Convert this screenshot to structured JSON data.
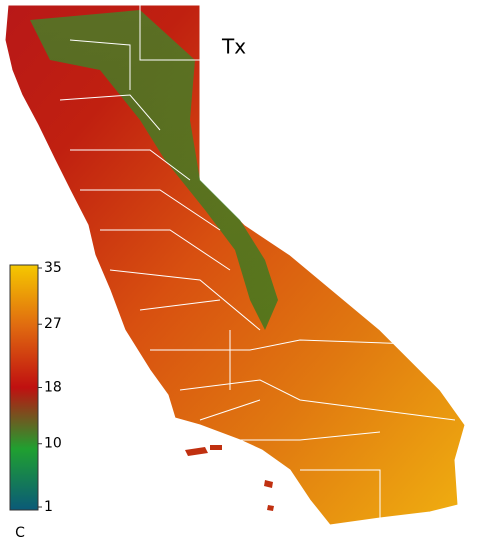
{
  "map": {
    "title": "Tx",
    "colorbar": {
      "lim": [
        1,
        35
      ],
      "ticks": [
        1,
        10,
        18,
        27,
        35
      ],
      "unit": "C"
    }
  }
}
